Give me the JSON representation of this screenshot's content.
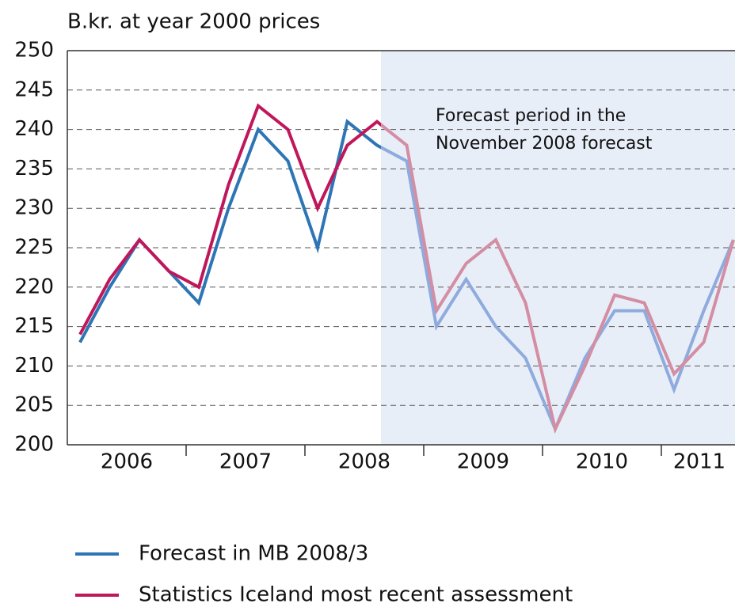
{
  "chart_data": {
    "type": "line",
    "title": "B.kr. at year 2000 prices",
    "annotation": [
      "Forecast period in the",
      "November 2008 forecast"
    ],
    "categories": [
      null,
      null,
      null,
      null,
      null,
      null,
      null,
      null,
      null,
      null,
      null,
      null,
      null,
      null,
      null,
      null,
      null,
      null,
      null,
      null,
      null,
      null,
      null
    ],
    "year_labels": [
      "2006",
      "2007",
      "2008",
      "2009",
      "2010",
      "2011"
    ],
    "series": [
      {
        "name": "Forecast in MB 2008/3",
        "color": "#2e75b6",
        "forecast_color": "#8fabdd",
        "values": [
          213,
          220,
          226,
          222,
          218,
          230,
          240,
          236,
          225,
          241,
          238,
          236,
          215,
          221,
          215,
          211,
          202,
          211,
          217,
          217,
          207,
          217,
          226
        ]
      },
      {
        "name": "Statistics Iceland most recent assessment",
        "color": "#c0175b",
        "forecast_color": "#d38ea3",
        "values": [
          214,
          221,
          226,
          222,
          220,
          233,
          243,
          240,
          230,
          238,
          241,
          238,
          217,
          223,
          226,
          218,
          202,
          210,
          219,
          218,
          209,
          213,
          226
        ]
      }
    ],
    "ylim": [
      200,
      250
    ],
    "yticks": [
      200,
      205,
      210,
      215,
      220,
      225,
      230,
      235,
      240,
      245,
      250
    ],
    "grid": true
  }
}
